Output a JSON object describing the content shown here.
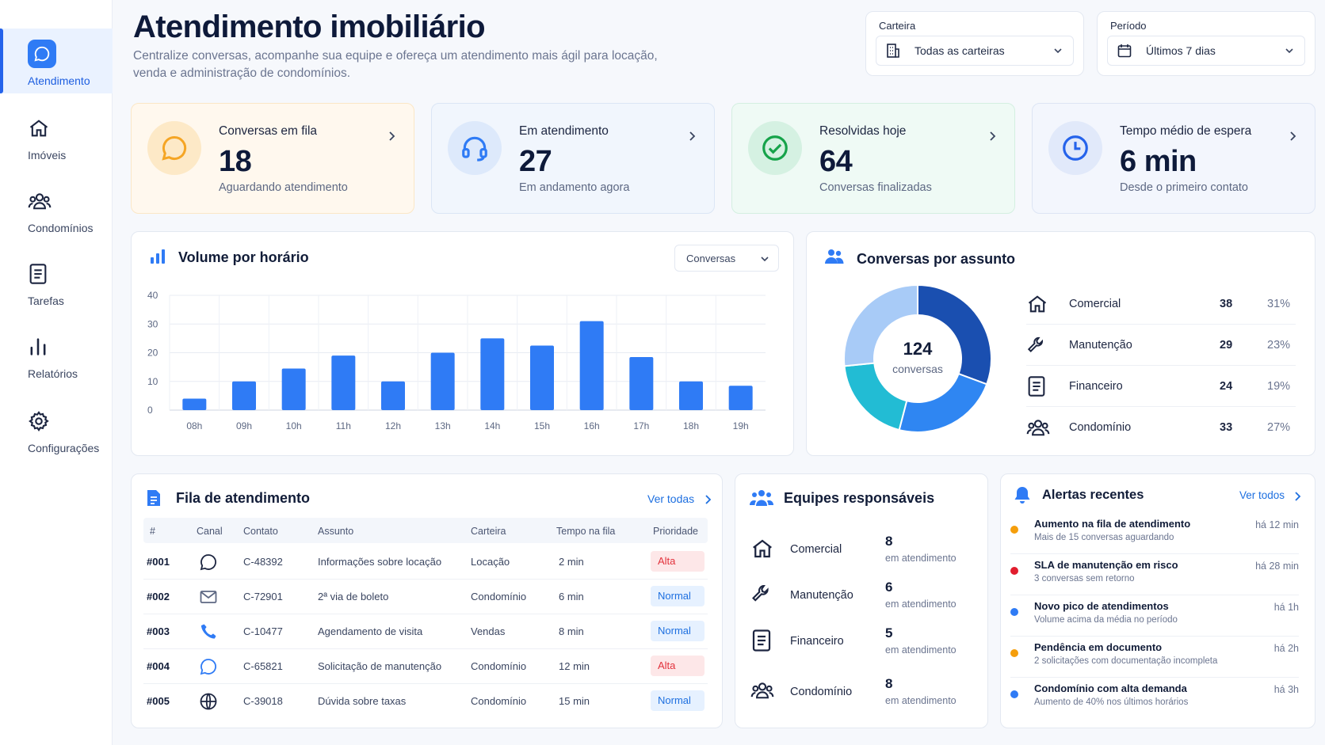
{
  "sidebar": {
    "items": [
      {
        "label": "Atendimento",
        "icon": "chat-bubble-icon",
        "active": true
      },
      {
        "label": "Imóveis",
        "icon": "home-icon"
      },
      {
        "label": "Condomínios",
        "icon": "users-icon"
      },
      {
        "label": "Tarefas",
        "icon": "document-icon"
      },
      {
        "label": "Relatórios",
        "icon": "bar-chart-icon"
      },
      {
        "label": "Configurações",
        "icon": "gear-icon"
      }
    ]
  },
  "header": {
    "title": "Atendimento imobiliário",
    "subtitle": "Centralize conversas, acompanhe sua equipe e ofereça um atendimento mais ágil para locação, venda e administração de condomínios."
  },
  "filters": {
    "carteira": {
      "label": "Carteira",
      "value": "Todas as carteiras"
    },
    "periodo": {
      "label": "Período",
      "value": "Últimos 7 dias"
    }
  },
  "kpis": [
    {
      "label": "Conversas em fila",
      "value": "18",
      "sub": "Aguardando atendimento",
      "color": "#f5a524"
    },
    {
      "label": "Em atendimento",
      "value": "27",
      "sub": "Em andamento agora",
      "color": "#2f7bf5"
    },
    {
      "label": "Resolvidas hoje",
      "value": "64",
      "sub": "Conversas finalizadas",
      "color": "#16a34a"
    },
    {
      "label": "Tempo médio de espera",
      "value": "6 min",
      "sub": "Desde o primeiro contato",
      "color": "#2563eb"
    }
  ],
  "volume": {
    "title": "Volume por horário",
    "dropdown": "Conversas"
  },
  "chart_data": {
    "type": "bar",
    "categories": [
      "08h",
      "09h",
      "10h",
      "11h",
      "12h",
      "13h",
      "14h",
      "15h",
      "16h",
      "17h",
      "18h",
      "19h"
    ],
    "values": [
      4,
      10,
      14.5,
      19,
      10,
      20,
      25,
      22.5,
      31,
      18.5,
      10,
      8.5
    ],
    "yticks": [
      0,
      10,
      20,
      30,
      40
    ],
    "ylim": [
      0,
      40
    ],
    "grid": true,
    "color": "#2f7bf5"
  },
  "assunto": {
    "title": "Conversas por assunto",
    "total": "124",
    "total_label": "conversas",
    "items": [
      {
        "name": "Comercial",
        "count": "38",
        "pct": "31%",
        "value": 38,
        "color": "#1a4fb0",
        "icon": "home-icon"
      },
      {
        "name": "Manutenção",
        "count": "29",
        "pct": "23%",
        "value": 29,
        "color": "#2f86f2",
        "icon": "wrench-icon"
      },
      {
        "name": "Financeiro",
        "count": "24",
        "pct": "19%",
        "value": 24,
        "color": "#22bcd4",
        "icon": "document-icon"
      },
      {
        "name": "Condomínio",
        "count": "33",
        "pct": "27%",
        "value": 33,
        "color": "#a8cbf7",
        "icon": "users-icon"
      }
    ]
  },
  "fila": {
    "title": "Fila de atendimento",
    "link": "Ver todas",
    "columns": [
      "#",
      "Canal",
      "Contato",
      "Assunto",
      "Carteira",
      "Tempo na fila",
      "Prioridade"
    ],
    "rows": [
      {
        "id": "#001",
        "canal": "whatsapp-icon",
        "contato": "C-48392",
        "assunto": "Informações sobre locação",
        "carteira": "Locação",
        "tempo": "2 min",
        "prioridade": "Alta"
      },
      {
        "id": "#002",
        "canal": "email-icon",
        "contato": "C-72901",
        "assunto": "2ª via de boleto",
        "carteira": "Condomínio",
        "tempo": "6 min",
        "prioridade": "Normal"
      },
      {
        "id": "#003",
        "canal": "phone-icon",
        "contato": "C-10477",
        "assunto": "Agendamento de visita",
        "carteira": "Vendas",
        "tempo": "8 min",
        "prioridade": "Normal"
      },
      {
        "id": "#004",
        "canal": "chat-icon",
        "contato": "C-65821",
        "assunto": "Solicitação de manutenção",
        "carteira": "Condomínio",
        "tempo": "12 min",
        "prioridade": "Alta"
      },
      {
        "id": "#005",
        "canal": "globe-icon",
        "contato": "C-39018",
        "assunto": "Dúvida sobre taxas",
        "carteira": "Condomínio",
        "tempo": "15 min",
        "prioridade": "Normal"
      }
    ]
  },
  "equipes": {
    "title": "Equipes responsáveis",
    "items": [
      {
        "name": "Comercial",
        "count": "8",
        "sub": "em atendimento",
        "icon": "home-icon"
      },
      {
        "name": "Manutenção",
        "count": "6",
        "sub": "em atendimento",
        "icon": "wrench-icon"
      },
      {
        "name": "Financeiro",
        "count": "5",
        "sub": "em atendimento",
        "icon": "document-icon"
      },
      {
        "name": "Condomínio",
        "count": "8",
        "sub": "em atendimento",
        "icon": "users-icon"
      }
    ]
  },
  "alertas": {
    "title": "Alertas recentes",
    "link": "Ver todos",
    "items": [
      {
        "title": "Aumento na fila de atendimento",
        "sub": "Mais de 15 conversas aguardando",
        "time": "há 12 min",
        "color": "#f59e0b"
      },
      {
        "title": "SLA de manutenção em risco",
        "sub": "3 conversas sem retorno",
        "time": "há 28 min",
        "color": "#e11d2e"
      },
      {
        "title": "Novo pico de atendimentos",
        "sub": "Volume acima da média no período",
        "time": "há 1h",
        "color": "#2f7bf5"
      },
      {
        "title": "Pendência em documento",
        "sub": "2 solicitações com documentação incompleta",
        "time": "há 2h",
        "color": "#f59e0b"
      },
      {
        "title": "Condomínio com alta demanda",
        "sub": "Aumento de 40% nos últimos horários",
        "time": "há 3h",
        "color": "#2f7bf5"
      }
    ]
  }
}
